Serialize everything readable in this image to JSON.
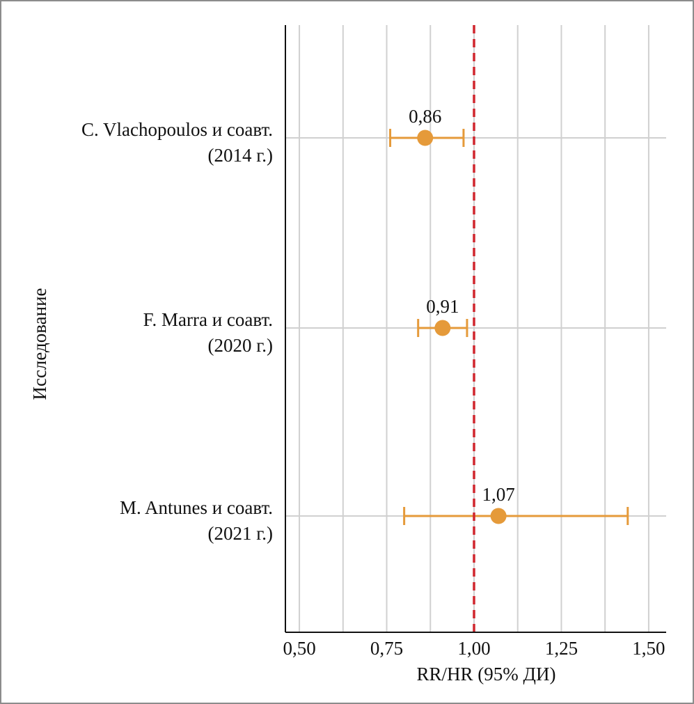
{
  "chart_data": {
    "type": "forest",
    "xlabel": "RR/HR (95% ДИ)",
    "ylabel": "Исследование",
    "xlim": [
      0.46,
      1.55
    ],
    "x_ticks": [
      0.5,
      0.625,
      0.75,
      0.875,
      1.0,
      1.125,
      1.25,
      1.375,
      1.5
    ],
    "x_tick_labels": [
      "0,50",
      "",
      "0,75",
      "",
      "1,00",
      "",
      "1,25",
      "",
      "1,50"
    ],
    "reference_line": 1.0,
    "grid": true,
    "colors": {
      "point": "#e59a3a",
      "reference": "#d0262e",
      "grid": "#d0d0d0",
      "axis": "#111111",
      "frame": "#8c8c8c"
    },
    "studies": [
      {
        "label_line1": "C. Vlachopoulos и соавт.",
        "label_line2": "(2014 г.)",
        "estimate": 0.86,
        "estimate_label": "0,86",
        "ci_low": 0.76,
        "ci_high": 0.97
      },
      {
        "label_line1": "F. Marra и соавт.",
        "label_line2": "(2020 г.)",
        "estimate": 0.91,
        "estimate_label": "0,91",
        "ci_low": 0.84,
        "ci_high": 0.98
      },
      {
        "label_line1": "M. Antunes и соавт.",
        "label_line2": "(2021 г.)",
        "estimate": 1.07,
        "estimate_label": "1,07",
        "ci_low": 0.8,
        "ci_high": 1.44
      }
    ]
  }
}
